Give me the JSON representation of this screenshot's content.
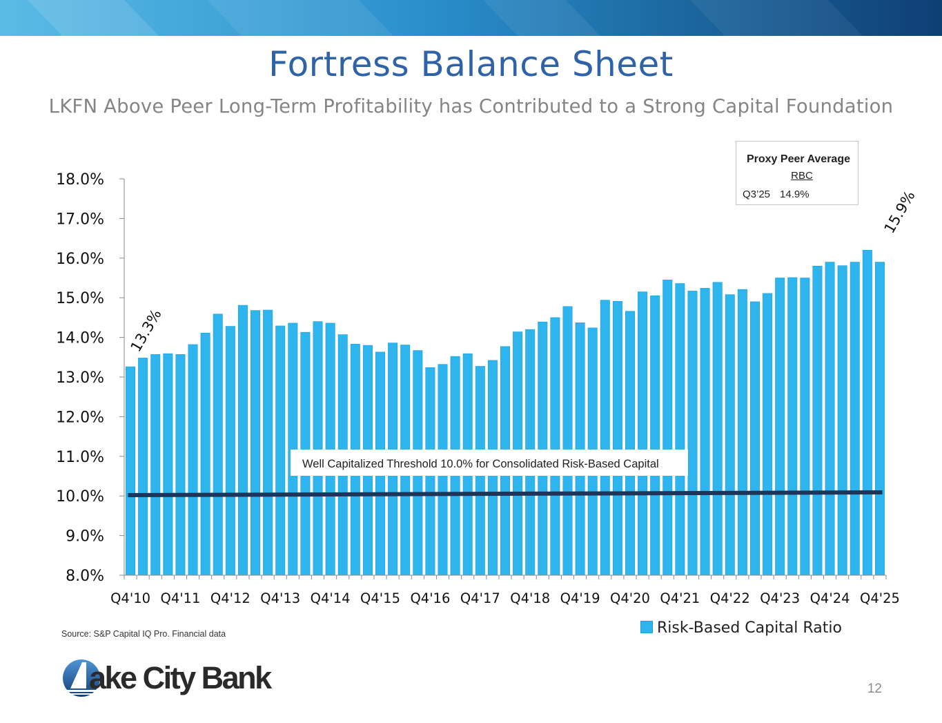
{
  "header": {
    "title": "Fortress Balance Sheet",
    "subtitle": "LKFN Above Peer Long-Term Profitability has Contributed to a Strong Capital Foundation"
  },
  "peer_box": {
    "title": "Proxy Peer Average",
    "subtitle": "RBC",
    "period": "Q3’25",
    "value": "14.9%"
  },
  "source_note": "Source: S&P Capital IQ Pro. Financial data",
  "logo": {
    "text": "ake City Bank"
  },
  "page_number": "12",
  "colors": {
    "bar": "#2fb5ee",
    "bar_edge": "#1aa0dc",
    "threshold": "#1e3557",
    "title": "#2f62a6"
  },
  "chart_data": {
    "type": "bar",
    "title": "",
    "xlabel": "",
    "ylabel": "",
    "ylim": [
      8.0,
      18.0
    ],
    "yticks": [
      "8.0%",
      "9.0%",
      "10.0%",
      "11.0%",
      "12.0%",
      "13.0%",
      "14.0%",
      "15.0%",
      "16.0%",
      "17.0%",
      "18.0%"
    ],
    "x_tick_labels": [
      "Q4'10",
      "Q4'11",
      "Q4'12",
      "Q4'13",
      "Q4'14",
      "Q4'15",
      "Q4'16",
      "Q4'17",
      "Q4'18",
      "Q4'19",
      "Q4'20",
      "Q4'21",
      "Q4'22",
      "Q4'23",
      "Q4'24",
      "Q4'25"
    ],
    "series": [
      {
        "name": "Risk-Based Capital Ratio",
        "values": [
          13.26,
          13.48,
          13.57,
          13.59,
          13.57,
          13.82,
          14.11,
          14.59,
          14.28,
          14.81,
          14.68,
          14.69,
          14.29,
          14.36,
          14.13,
          14.4,
          14.36,
          14.07,
          13.83,
          13.8,
          13.63,
          13.86,
          13.81,
          13.67,
          13.24,
          13.32,
          13.52,
          13.59,
          13.27,
          13.42,
          13.77,
          14.14,
          14.2,
          14.39,
          14.5,
          14.78,
          14.37,
          14.24,
          14.94,
          14.91,
          14.66,
          15.15,
          15.05,
          15.45,
          15.36,
          15.17,
          15.24,
          15.39,
          15.08,
          15.21,
          14.9,
          15.11,
          15.5,
          15.51,
          15.5,
          15.8,
          15.9,
          15.81,
          15.9,
          16.2,
          15.9
        ]
      }
    ],
    "threshold": {
      "start": 10.02,
      "end": 10.09,
      "label": "Well Capitalized Threshold 10.0% for Consolidated Risk-Based Capital"
    },
    "annotations": [
      {
        "text": "13.3%",
        "bar_index": 0
      },
      {
        "text": "15.9%",
        "bar_index": 60
      }
    ],
    "legend": {
      "label": "Risk-Based Capital Ratio",
      "position": "bottom-right"
    }
  }
}
